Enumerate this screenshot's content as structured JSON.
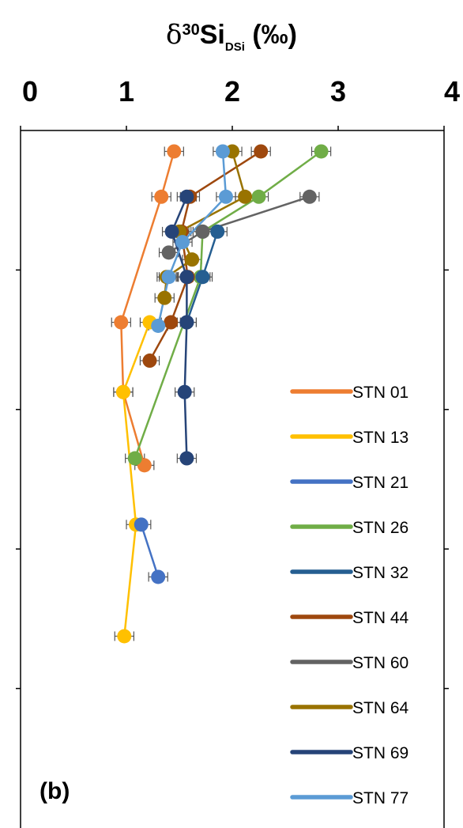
{
  "chart_data": {
    "type": "line",
    "title": "",
    "xlabel_prefix": "δ",
    "xlabel_sup": "30",
    "xlabel_main": "Si",
    "xlabel_sub": "DSi",
    "xlabel_unit": " (‰)",
    "xlim": [
      0,
      4
    ],
    "xticks": [
      "0",
      "1",
      "2",
      "3",
      "4"
    ],
    "x_axis_position": "top",
    "y_orientation": "depth increases downward",
    "ylim": [
      0,
      1000
    ],
    "y_tick_values": [
      200,
      400,
      600,
      800,
      1000
    ],
    "y_tick_labels_shown": false,
    "grid": false,
    "legend_position": "right",
    "panel_label": "(b)",
    "series": [
      {
        "name": "STN 01",
        "color": "#ED7D31",
        "points": [
          {
            "x": 1.45,
            "y": 30
          },
          {
            "x": 1.33,
            "y": 95
          },
          {
            "x": 0.95,
            "y": 275
          },
          {
            "x": 0.97,
            "y": 375
          },
          {
            "x": 1.17,
            "y": 480
          }
        ]
      },
      {
        "name": "STN 13",
        "color": "#FFC000",
        "points": [
          {
            "x": 1.22,
            "y": 275
          },
          {
            "x": 0.97,
            "y": 375
          },
          {
            "x": 1.09,
            "y": 565
          },
          {
            "x": 0.98,
            "y": 725
          }
        ]
      },
      {
        "name": "STN 21",
        "color": "#4472C4",
        "points": [
          {
            "x": 1.14,
            "y": 565
          },
          {
            "x": 1.3,
            "y": 640
          }
        ]
      },
      {
        "name": "STN 26",
        "color": "#70AD47",
        "points": [
          {
            "x": 2.84,
            "y": 30
          },
          {
            "x": 2.25,
            "y": 95
          },
          {
            "x": 1.72,
            "y": 145
          },
          {
            "x": 1.7,
            "y": 210
          },
          {
            "x": 1.08,
            "y": 470
          }
        ]
      },
      {
        "name": "STN 32",
        "color": "#255E91",
        "points": [
          {
            "x": 1.86,
            "y": 145
          },
          {
            "x": 1.72,
            "y": 210
          },
          {
            "x": 1.57,
            "y": 275
          }
        ]
      },
      {
        "name": "STN 44",
        "color": "#9E480E",
        "points": [
          {
            "x": 2.27,
            "y": 30
          },
          {
            "x": 1.6,
            "y": 95
          },
          {
            "x": 1.52,
            "y": 145
          },
          {
            "x": 1.58,
            "y": 210
          },
          {
            "x": 1.42,
            "y": 275
          },
          {
            "x": 1.22,
            "y": 330
          }
        ]
      },
      {
        "name": "STN 60",
        "color": "#636363",
        "points": [
          {
            "x": 2.73,
            "y": 95
          },
          {
            "x": 1.72,
            "y": 145
          },
          {
            "x": 1.4,
            "y": 175
          }
        ]
      },
      {
        "name": "STN 64",
        "color": "#997300",
        "points": [
          {
            "x": 2.0,
            "y": 30
          },
          {
            "x": 2.12,
            "y": 95
          },
          {
            "x": 1.5,
            "y": 145
          },
          {
            "x": 1.62,
            "y": 185
          },
          {
            "x": 1.38,
            "y": 210
          },
          {
            "x": 1.36,
            "y": 240
          }
        ]
      },
      {
        "name": "STN 69",
        "color": "#264478",
        "points": [
          {
            "x": 1.57,
            "y": 95
          },
          {
            "x": 1.43,
            "y": 145
          },
          {
            "x": 1.57,
            "y": 210
          },
          {
            "x": 1.57,
            "y": 275
          },
          {
            "x": 1.55,
            "y": 375
          },
          {
            "x": 1.57,
            "y": 470
          }
        ]
      },
      {
        "name": "STN 77",
        "color": "#5B9BD5",
        "points": [
          {
            "x": 1.91,
            "y": 30
          },
          {
            "x": 1.94,
            "y": 95
          },
          {
            "x": 1.53,
            "y": 160
          },
          {
            "x": 1.4,
            "y": 210
          },
          {
            "x": 1.3,
            "y": 280
          }
        ]
      }
    ]
  }
}
